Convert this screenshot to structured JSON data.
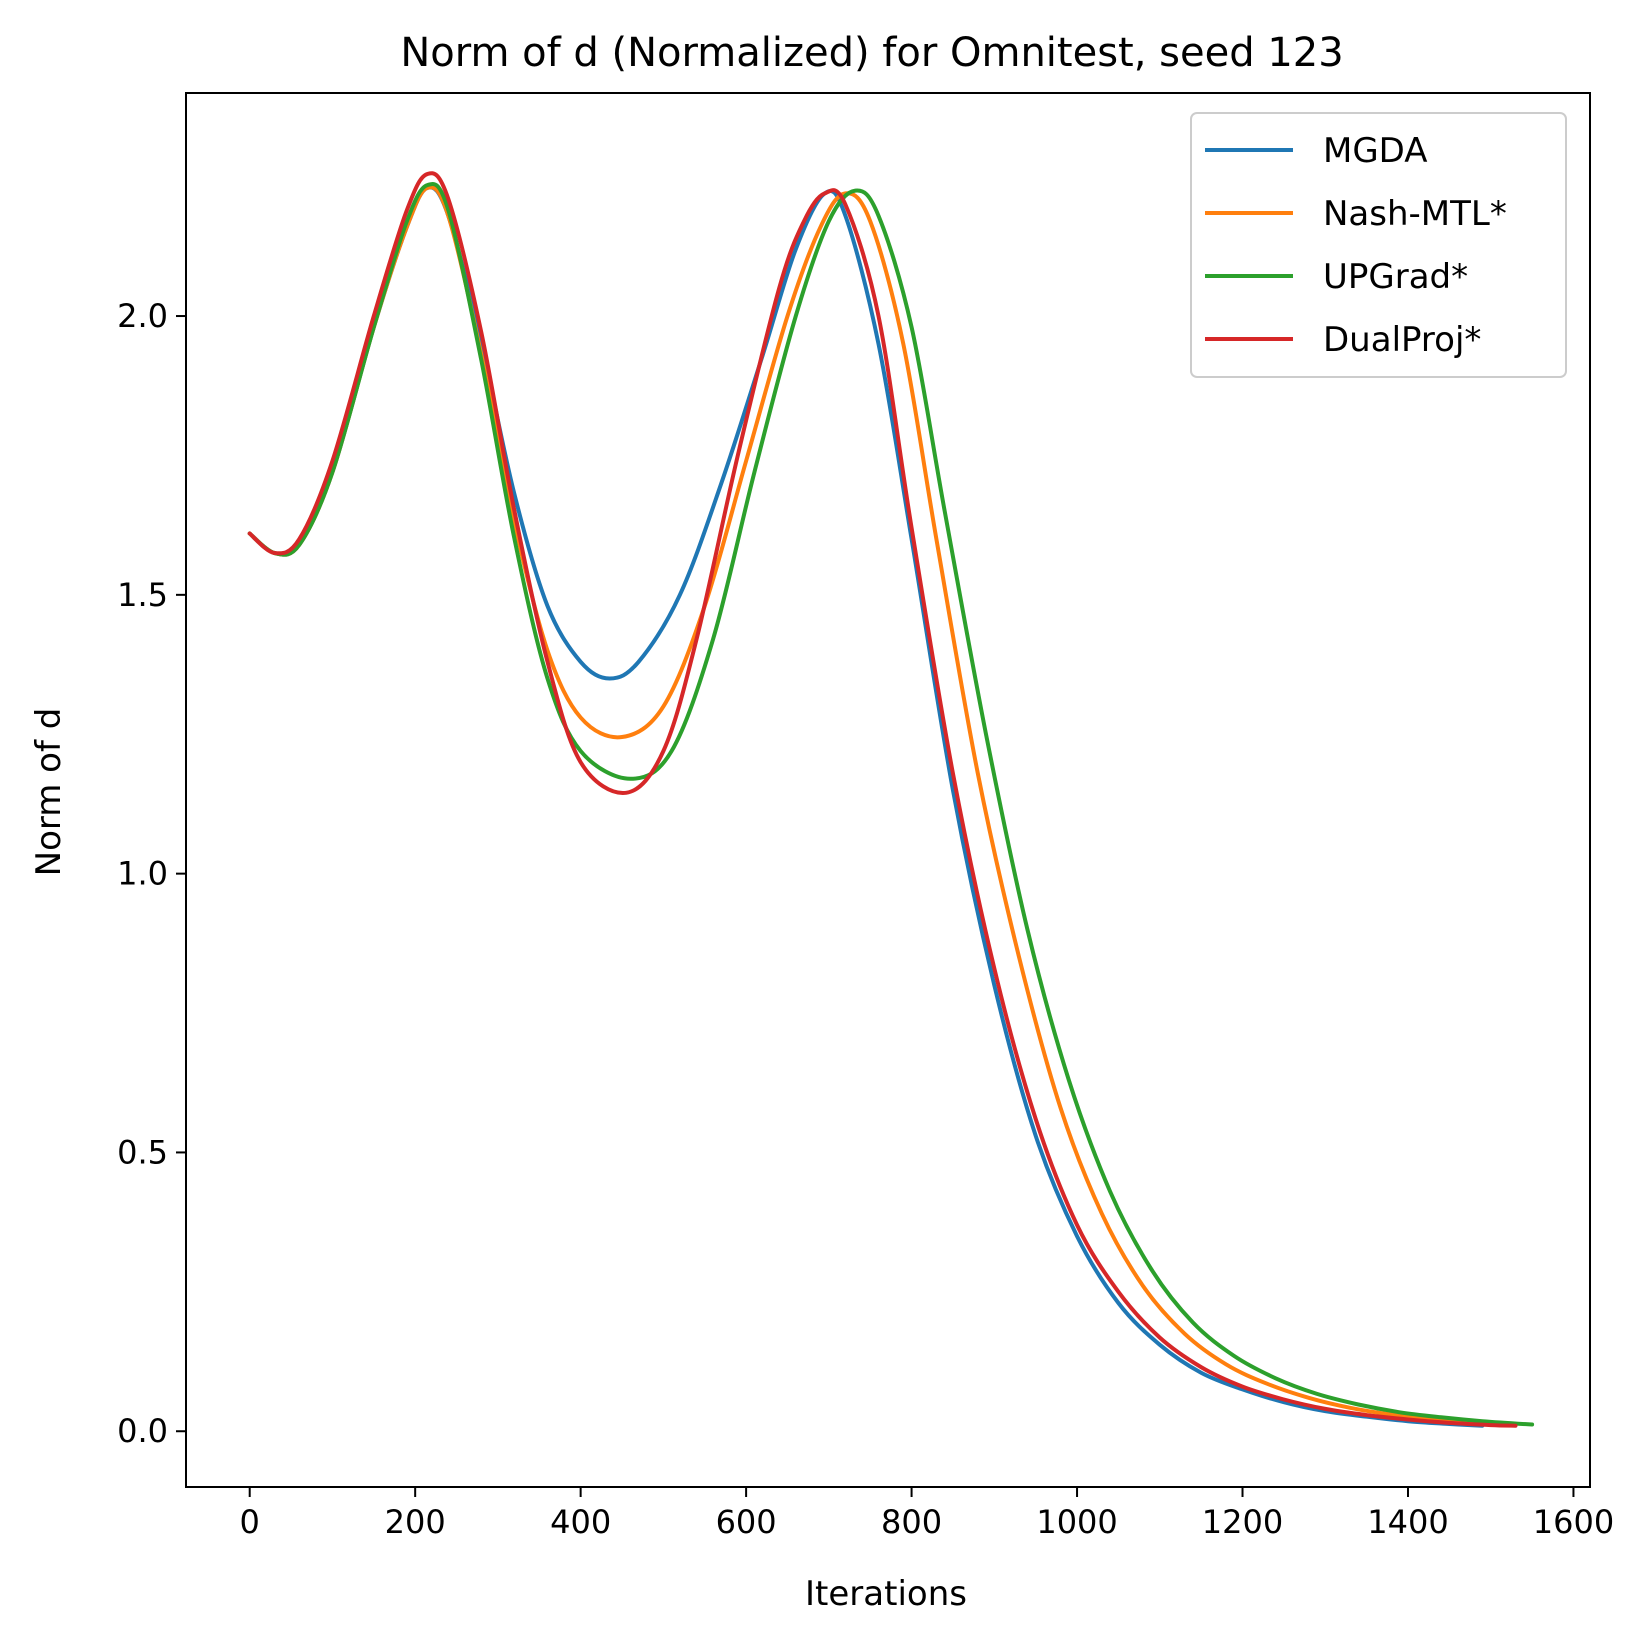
{
  "chart_data": {
    "type": "line",
    "title": "Norm of d (Normalized) for Omnitest, seed 123",
    "xlabel": "Iterations",
    "ylabel": "Norm of d",
    "xlim": [
      -77,
      1620
    ],
    "ylim": [
      -0.1,
      2.4
    ],
    "xticks": [
      0,
      200,
      400,
      600,
      800,
      1000,
      1200,
      1400,
      1600
    ],
    "yticks": [
      0.0,
      0.5,
      1.0,
      1.5,
      2.0
    ],
    "xtick_labels": [
      "0",
      "200",
      "400",
      "600",
      "800",
      "1000",
      "1200",
      "1400",
      "1600"
    ],
    "ytick_labels": [
      "0.0",
      "0.5",
      "1.0",
      "1.5",
      "2.0"
    ],
    "grid": false,
    "legend_position": "top-right",
    "series": [
      {
        "name": "MGDA",
        "color": "#1f77b4",
        "points": [
          [
            0,
            1.61
          ],
          [
            30,
            1.575
          ],
          [
            60,
            1.59
          ],
          [
            100,
            1.72
          ],
          [
            150,
            1.98
          ],
          [
            190,
            2.16
          ],
          [
            215,
            2.23
          ],
          [
            240,
            2.18
          ],
          [
            280,
            1.95
          ],
          [
            320,
            1.68
          ],
          [
            360,
            1.48
          ],
          [
            400,
            1.38
          ],
          [
            435,
            1.35
          ],
          [
            470,
            1.38
          ],
          [
            520,
            1.5
          ],
          [
            570,
            1.7
          ],
          [
            620,
            1.93
          ],
          [
            660,
            2.12
          ],
          [
            695,
            2.22
          ],
          [
            720,
            2.18
          ],
          [
            760,
            1.95
          ],
          [
            800,
            1.6
          ],
          [
            850,
            1.15
          ],
          [
            900,
            0.8
          ],
          [
            950,
            0.53
          ],
          [
            1000,
            0.35
          ],
          [
            1050,
            0.23
          ],
          [
            1100,
            0.155
          ],
          [
            1150,
            0.105
          ],
          [
            1200,
            0.075
          ],
          [
            1250,
            0.052
          ],
          [
            1300,
            0.036
          ],
          [
            1350,
            0.026
          ],
          [
            1400,
            0.018
          ],
          [
            1450,
            0.013
          ],
          [
            1490,
            0.01
          ]
        ]
      },
      {
        "name": "Nash-MTL*",
        "color": "#ff7f0e",
        "points": [
          [
            0,
            1.61
          ],
          [
            30,
            1.575
          ],
          [
            60,
            1.59
          ],
          [
            100,
            1.72
          ],
          [
            150,
            1.98
          ],
          [
            190,
            2.16
          ],
          [
            215,
            2.23
          ],
          [
            240,
            2.18
          ],
          [
            280,
            1.93
          ],
          [
            320,
            1.63
          ],
          [
            360,
            1.4
          ],
          [
            400,
            1.28
          ],
          [
            450,
            1.245
          ],
          [
            500,
            1.3
          ],
          [
            550,
            1.48
          ],
          [
            600,
            1.74
          ],
          [
            650,
            2.0
          ],
          [
            690,
            2.16
          ],
          [
            720,
            2.22
          ],
          [
            750,
            2.17
          ],
          [
            790,
            1.95
          ],
          [
            830,
            1.6
          ],
          [
            880,
            1.18
          ],
          [
            930,
            0.85
          ],
          [
            980,
            0.58
          ],
          [
            1030,
            0.39
          ],
          [
            1080,
            0.26
          ],
          [
            1130,
            0.175
          ],
          [
            1180,
            0.12
          ],
          [
            1230,
            0.085
          ],
          [
            1280,
            0.06
          ],
          [
            1330,
            0.042
          ],
          [
            1380,
            0.03
          ],
          [
            1430,
            0.022
          ],
          [
            1480,
            0.016
          ],
          [
            1530,
            0.012
          ]
        ]
      },
      {
        "name": "UPGrad*",
        "color": "#2ca02c",
        "points": [
          [
            0,
            1.61
          ],
          [
            30,
            1.575
          ],
          [
            60,
            1.59
          ],
          [
            100,
            1.72
          ],
          [
            150,
            1.98
          ],
          [
            190,
            2.17
          ],
          [
            215,
            2.235
          ],
          [
            240,
            2.19
          ],
          [
            280,
            1.92
          ],
          [
            320,
            1.6
          ],
          [
            360,
            1.35
          ],
          [
            400,
            1.22
          ],
          [
            460,
            1.17
          ],
          [
            510,
            1.22
          ],
          [
            560,
            1.42
          ],
          [
            610,
            1.72
          ],
          [
            660,
            2.0
          ],
          [
            700,
            2.17
          ],
          [
            732,
            2.225
          ],
          [
            760,
            2.18
          ],
          [
            800,
            1.98
          ],
          [
            840,
            1.65
          ],
          [
            890,
            1.25
          ],
          [
            940,
            0.9
          ],
          [
            990,
            0.63
          ],
          [
            1040,
            0.43
          ],
          [
            1090,
            0.29
          ],
          [
            1140,
            0.195
          ],
          [
            1190,
            0.135
          ],
          [
            1240,
            0.095
          ],
          [
            1290,
            0.067
          ],
          [
            1340,
            0.048
          ],
          [
            1390,
            0.034
          ],
          [
            1440,
            0.025
          ],
          [
            1490,
            0.018
          ],
          [
            1550,
            0.012
          ]
        ]
      },
      {
        "name": "DualProj*",
        "color": "#d62728",
        "points": [
          [
            0,
            1.61
          ],
          [
            30,
            1.575
          ],
          [
            60,
            1.6
          ],
          [
            100,
            1.74
          ],
          [
            150,
            2.0
          ],
          [
            190,
            2.19
          ],
          [
            215,
            2.255
          ],
          [
            240,
            2.21
          ],
          [
            280,
            1.97
          ],
          [
            320,
            1.65
          ],
          [
            360,
            1.38
          ],
          [
            400,
            1.2
          ],
          [
            455,
            1.145
          ],
          [
            500,
            1.22
          ],
          [
            540,
            1.42
          ],
          [
            590,
            1.75
          ],
          [
            640,
            2.05
          ],
          [
            670,
            2.17
          ],
          [
            695,
            2.22
          ],
          [
            720,
            2.2
          ],
          [
            760,
            2.0
          ],
          [
            800,
            1.62
          ],
          [
            850,
            1.18
          ],
          [
            900,
            0.83
          ],
          [
            950,
            0.56
          ],
          [
            1000,
            0.37
          ],
          [
            1050,
            0.25
          ],
          [
            1100,
            0.168
          ],
          [
            1150,
            0.115
          ],
          [
            1200,
            0.08
          ],
          [
            1250,
            0.057
          ],
          [
            1300,
            0.04
          ],
          [
            1350,
            0.029
          ],
          [
            1400,
            0.021
          ],
          [
            1450,
            0.015
          ],
          [
            1500,
            0.011
          ],
          [
            1530,
            0.01
          ]
        ]
      }
    ]
  }
}
